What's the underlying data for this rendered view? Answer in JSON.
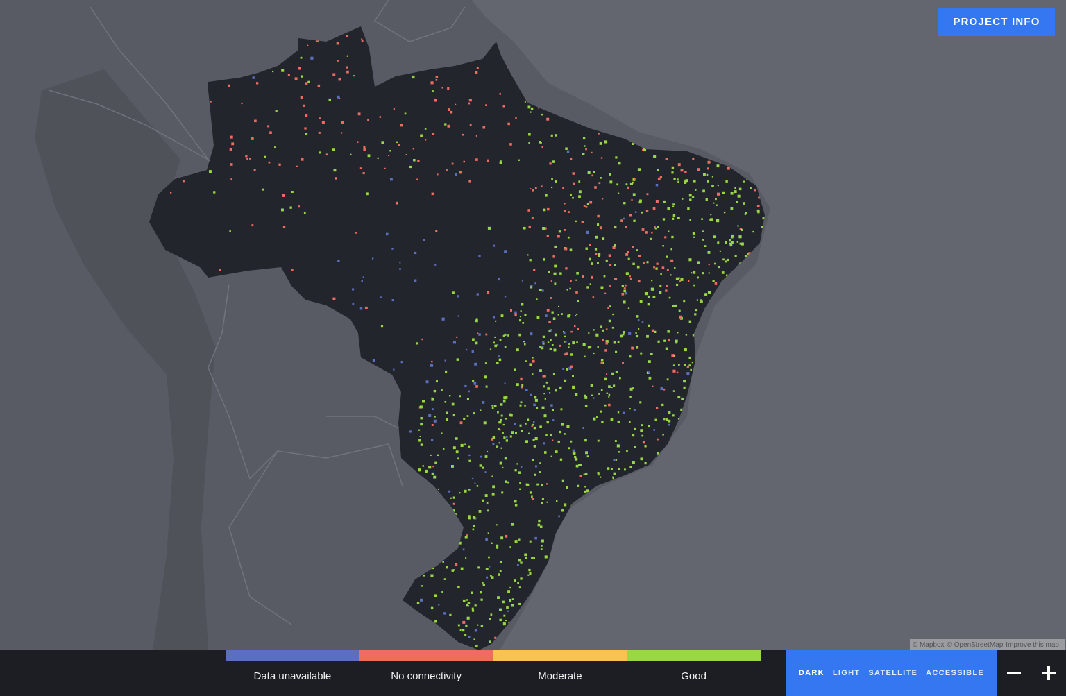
{
  "header": {
    "project_info_label": "PROJECT INFO"
  },
  "attribution": {
    "mapbox": "© Mapbox",
    "osm": "© OpenStreetMap",
    "improve": "Improve this map"
  },
  "legend": [
    {
      "label": "Data unavailable",
      "color": "#5b6fc0"
    },
    {
      "label": "No connectivity",
      "color": "#ef6c5f"
    },
    {
      "label": "Moderate",
      "color": "#f7c54f"
    },
    {
      "label": "Good",
      "color": "#9ad843"
    }
  ],
  "map_styles": {
    "dark": "DARK",
    "light": "LIGHT",
    "satellite": "SATELLITE",
    "accessible": "ACCESSIBLE",
    "active": "DARK"
  },
  "zoom": {
    "out_icon": "minus-icon",
    "in_icon": "plus-icon"
  },
  "colors": {
    "water": "#63666f",
    "land": "#585b63",
    "country_fill": "#23252d",
    "accent": "#3577f1",
    "bar": "#1d1e23"
  }
}
